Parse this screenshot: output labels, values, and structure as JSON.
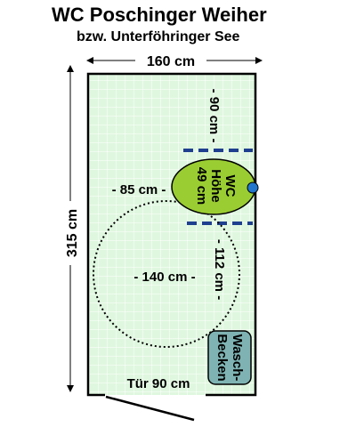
{
  "title": "WC Poschinger Weiher",
  "subtitle": "bzw. Unterföhringer See",
  "dimensions": {
    "width_label": "160 cm",
    "height_label": "315 cm"
  },
  "wc": {
    "label_line1": "WC",
    "label_line2": "Höhe",
    "label_line3": "49 cm",
    "top_clearance": "- 90 cm -",
    "bottom_clearance": "- 112 cm -",
    "side_clearance": "- 85 cm -"
  },
  "turning_circle_label": "- 140 cm -",
  "sink_label_line1": "Wasch-",
  "sink_label_line2": "Becken",
  "door_label": "Tür 90 cm",
  "colors": {
    "floor": "#dff7df",
    "grid": "#ffffff",
    "wc_fill": "#9acd32",
    "dash_blue": "#1f3f8f",
    "sink_fill": "#7fb3b3",
    "flush_dot": "#2277cc"
  }
}
